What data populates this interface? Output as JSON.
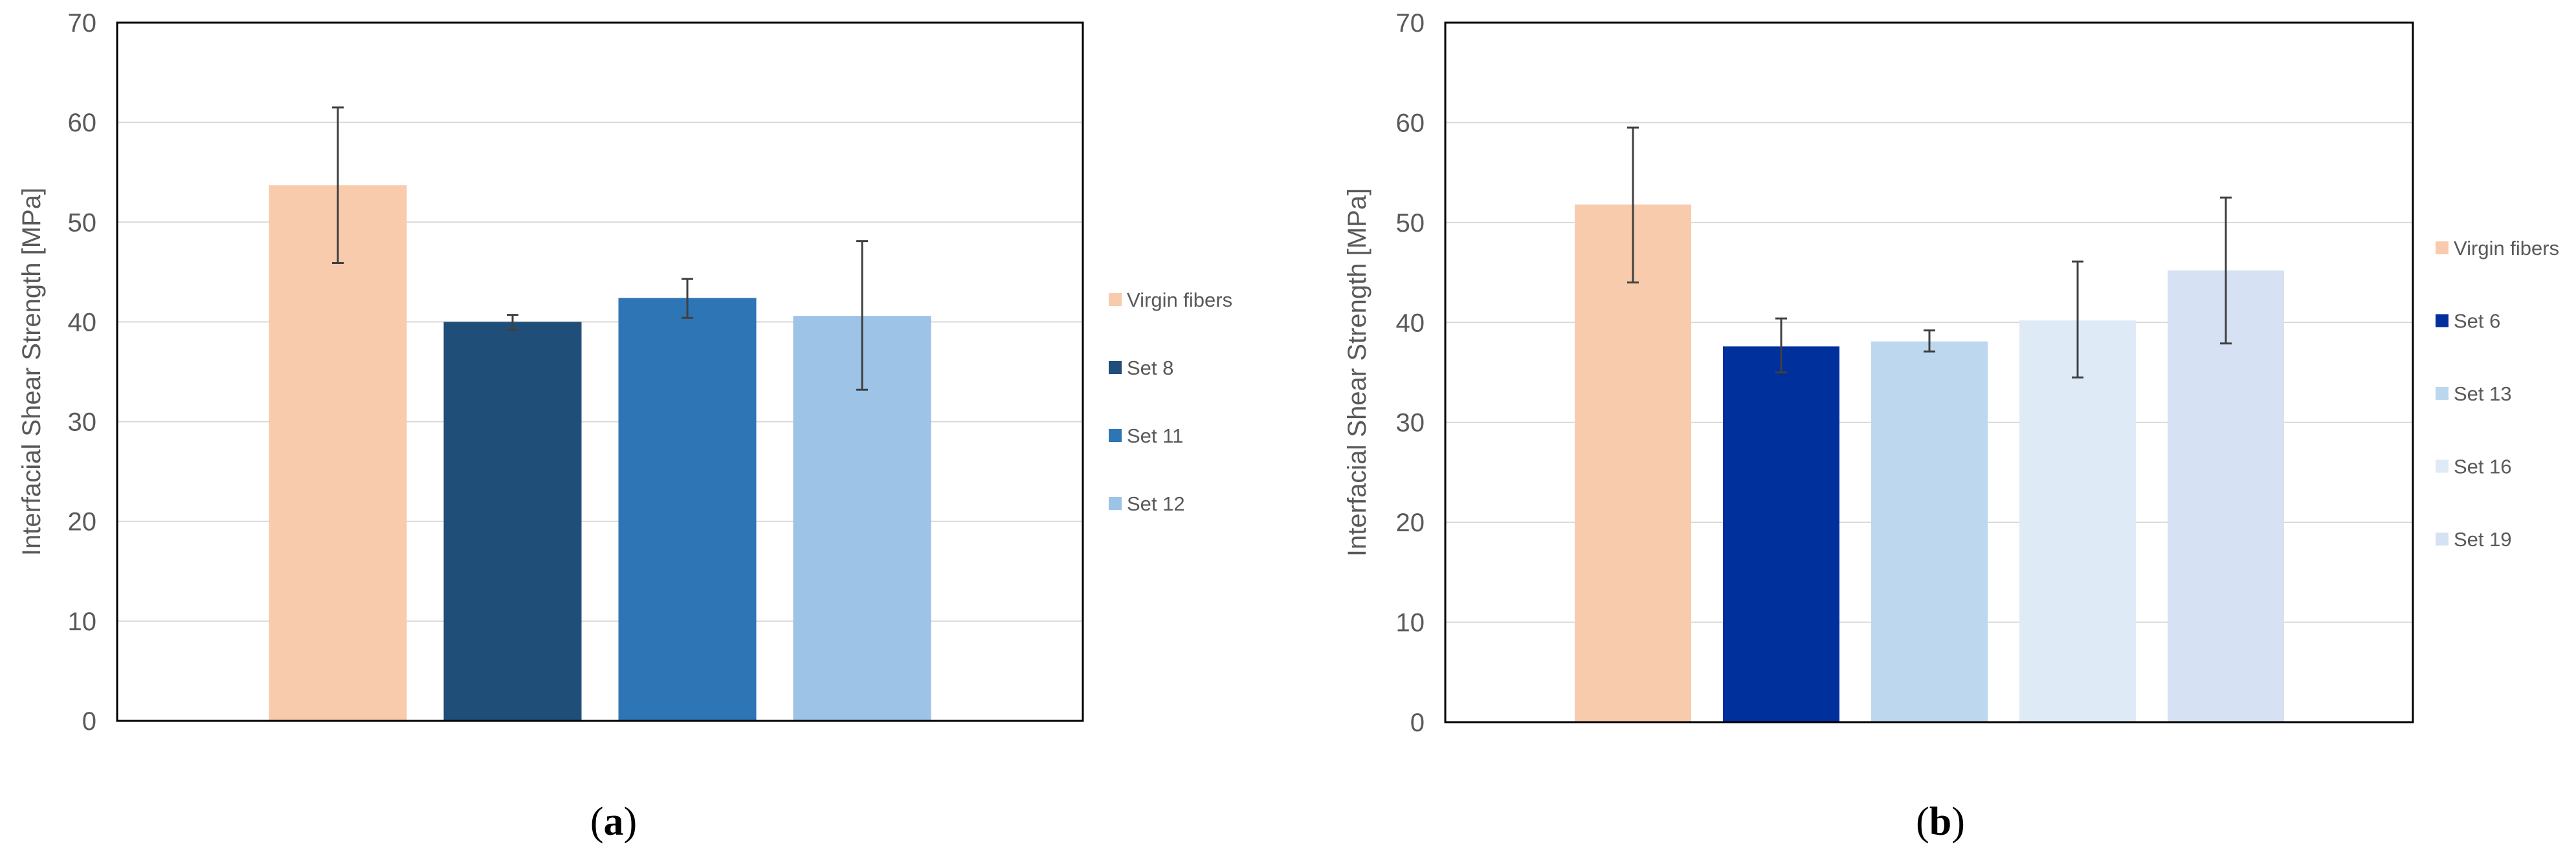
{
  "chart_data": [
    {
      "type": "bar",
      "panel": "a",
      "caption": "a",
      "ylabel": "Interfacial Shear Strength [MPa]",
      "xlabel": "",
      "ylim": [
        0,
        70
      ],
      "yticks": [
        0,
        10,
        20,
        30,
        40,
        50,
        60,
        70
      ],
      "grid": true,
      "legend_position": "right",
      "categories": [
        "Virgin fibers",
        "Set 8",
        "Set 11",
        "Set 12"
      ],
      "values": [
        53.7,
        40.0,
        42.4,
        40.6
      ],
      "error_low": [
        45.9,
        39.2,
        40.4,
        33.2
      ],
      "error_high": [
        61.5,
        40.7,
        44.3,
        48.1
      ],
      "colors": [
        "#F8CBAD",
        "#1F4E79",
        "#2E75B6",
        "#9DC3E6"
      ]
    },
    {
      "type": "bar",
      "panel": "b",
      "caption": "b",
      "ylabel": "Interfacial Shear Strength [MPa]",
      "xlabel": "",
      "ylim": [
        0,
        70
      ],
      "yticks": [
        0,
        10,
        20,
        30,
        40,
        50,
        60,
        70
      ],
      "grid": true,
      "legend_position": "right",
      "categories": [
        "Virgin fibers",
        "Set 6",
        "Set 13",
        "Set 16",
        "Set 19"
      ],
      "values": [
        51.8,
        37.6,
        38.1,
        40.2,
        45.2
      ],
      "error_low": [
        44.0,
        35.0,
        37.1,
        34.5,
        37.9
      ],
      "error_high": [
        59.5,
        40.4,
        39.2,
        46.1,
        52.5
      ],
      "colors": [
        "#F8CBAD",
        "#00309C",
        "#BDD7EE",
        "#DEEBF7",
        "#D6E2F3"
      ]
    }
  ]
}
